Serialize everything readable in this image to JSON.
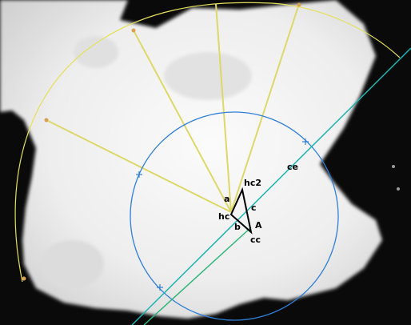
{
  "labels": {
    "hc2": "hc2",
    "ce": "ce",
    "a": "a",
    "c": "c",
    "hc": "hc",
    "A": "A",
    "b": "b",
    "cc": "cc"
  },
  "colors": {
    "background": "#0a0a0a",
    "specimen": "#f2f2f2",
    "specimen_shadow": "#d4d4d4",
    "arc": "#e6e05a",
    "rays": "#ddd86a",
    "circle": "#2f7fd8",
    "line_cyan": "#1fb3b0",
    "line_green": "#2fb57a",
    "triangle": "#000000",
    "marker": "#d8a050"
  }
}
